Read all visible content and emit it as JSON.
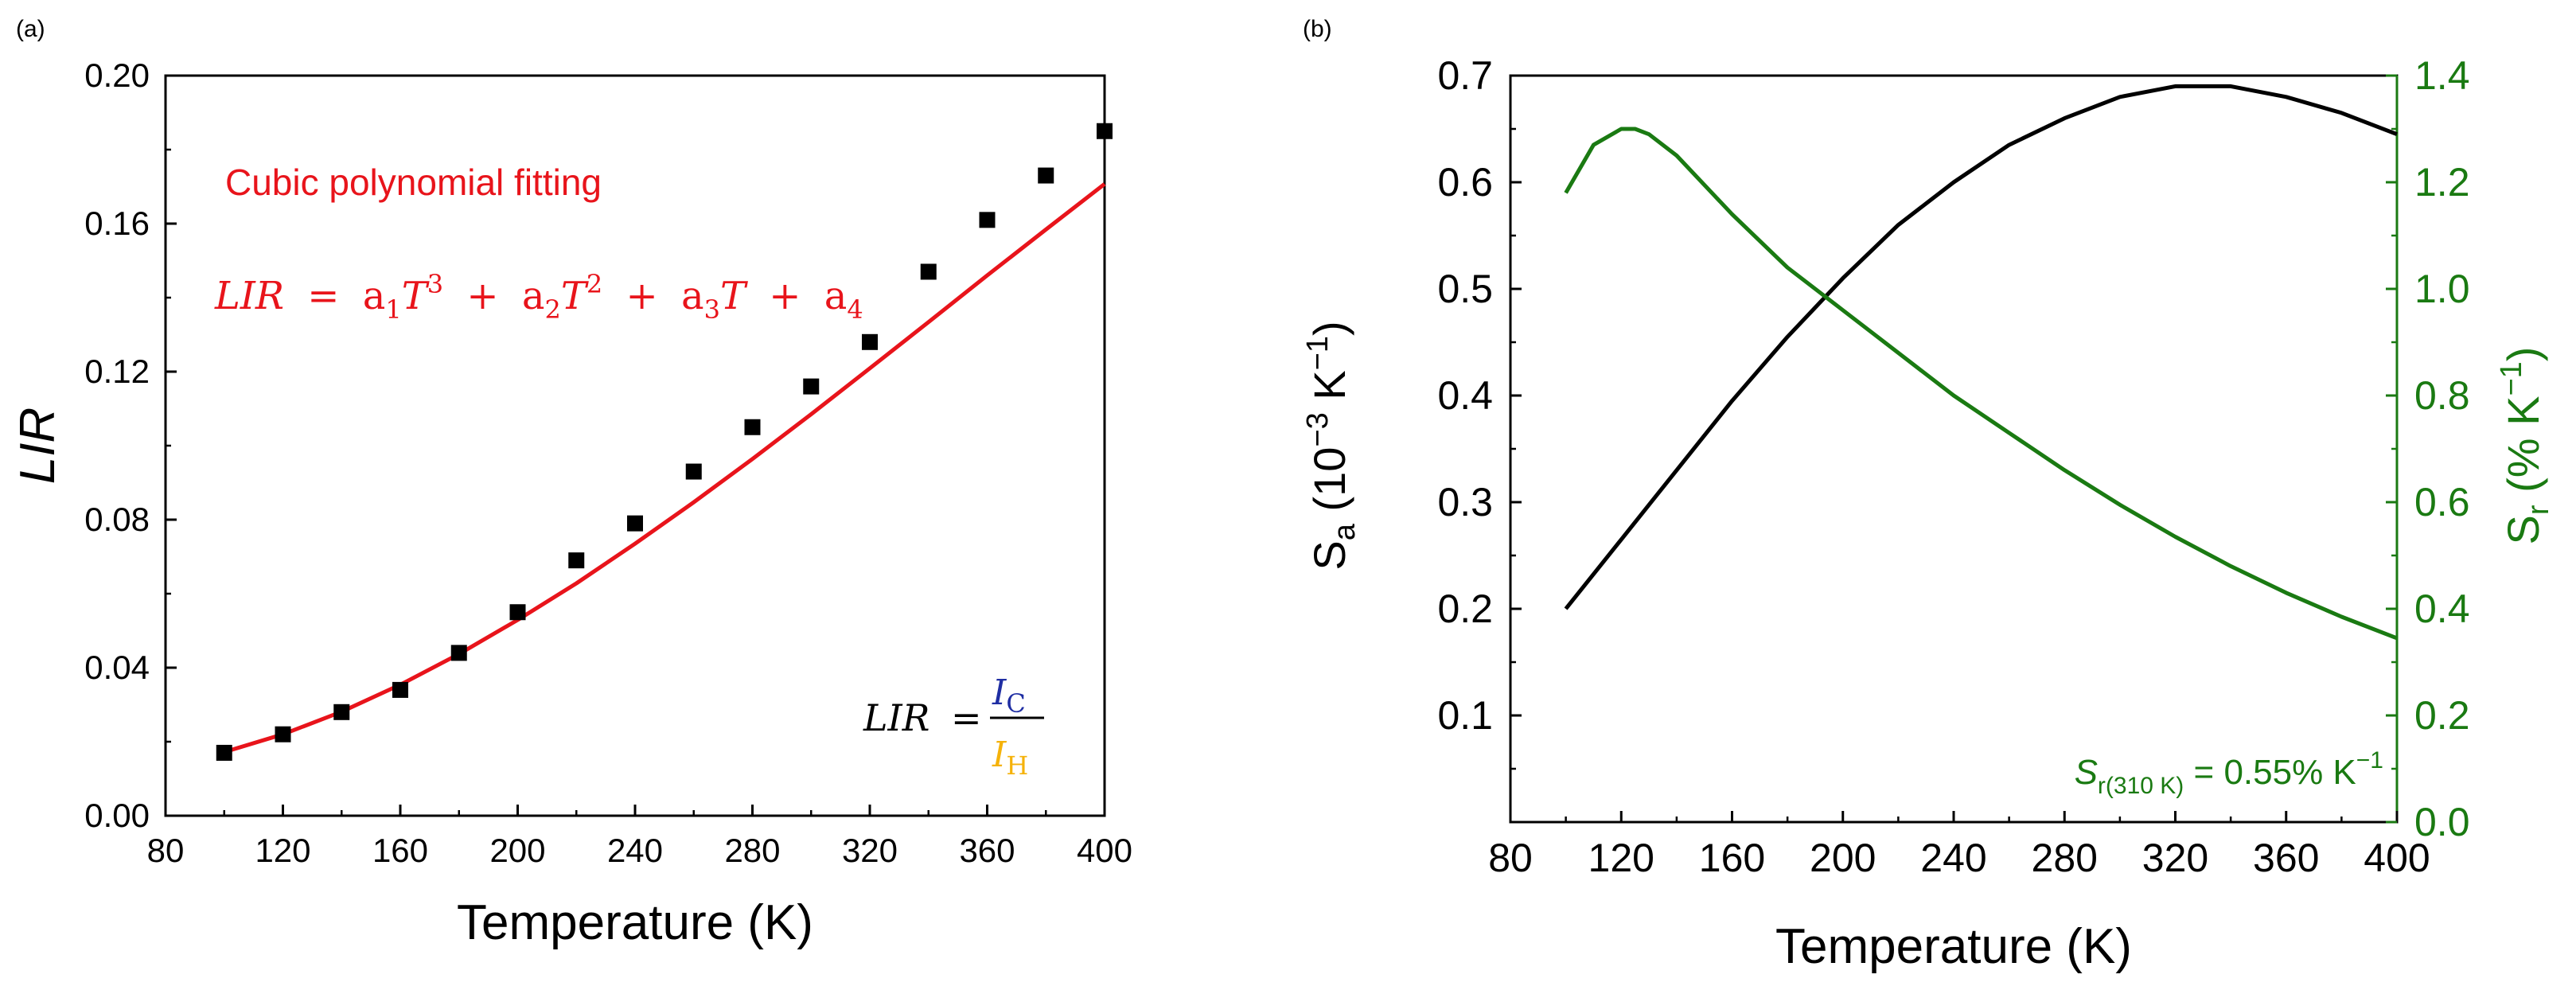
{
  "panels": {
    "a": {
      "label": "(a)"
    },
    "b": {
      "label": "(b)"
    }
  },
  "chart_data": [
    {
      "panel": "a",
      "type": "scatter",
      "xlabel": "Temperature (K)",
      "ylabel": "LIR",
      "xlim": [
        80,
        400
      ],
      "ylim": [
        0.0,
        0.2
      ],
      "xticks": [
        "80",
        "120",
        "160",
        "200",
        "240",
        "280",
        "320",
        "360",
        "400"
      ],
      "yticks": [
        "0.00",
        "0.04",
        "0.08",
        "0.12",
        "0.16",
        "0.20"
      ],
      "colors": {
        "points": "#000000",
        "fit": "#e8141b",
        "annotation": "#e8141b",
        "ic": "#1f2ea3",
        "ih": "#f5b20a"
      },
      "series": [
        {
          "kind": "points",
          "x": [
            100,
            120,
            140,
            160,
            180,
            200,
            220,
            240,
            260,
            280,
            300,
            320,
            340,
            360,
            380,
            400
          ],
          "values": [
            0.017,
            0.022,
            0.028,
            0.034,
            0.044,
            0.055,
            0.069,
            0.079,
            0.093,
            0.105,
            0.116,
            0.128,
            0.147,
            0.161,
            0.173,
            0.185
          ]
        },
        {
          "kind": "fit-line",
          "x": [
            100,
            120,
            140,
            160,
            180,
            200,
            220,
            240,
            260,
            280,
            300,
            320,
            340,
            360,
            380,
            400
          ],
          "values": [
            0.0172,
            0.022,
            0.0281,
            0.0354,
            0.0437,
            0.0529,
            0.0628,
            0.0735,
            0.0847,
            0.0964,
            0.1085,
            0.1209,
            0.1334,
            0.146,
            0.1584,
            0.1707
          ]
        }
      ],
      "annotations": {
        "fit_title": "Cubic polynomial fitting",
        "equation": {
          "lhs": "LIR",
          "eq": "=",
          "t1_a": "a",
          "t1_sub": "1",
          "t1_var": "T",
          "t1_sup": "3",
          "plus1": "+",
          "t2_a": "a",
          "t2_sub": "2",
          "t2_var": "T",
          "t2_sup": "2",
          "plus2": "+",
          "t3_a": "a",
          "t3_sub": "3",
          "t3_var": "T",
          "plus3": "+",
          "t4_a": "a",
          "t4_sub": "4"
        },
        "ratio": {
          "lhs": "LIR",
          "eq": "=",
          "num": "I",
          "num_sub": "C",
          "den": "I",
          "den_sub": "H"
        }
      }
    },
    {
      "panel": "b",
      "type": "line",
      "xlabel": "Temperature (K)",
      "ylabel_left": {
        "main": "S",
        "sub": "a",
        "rest1": " (10",
        "sup1": "−3",
        "rest2": " K",
        "sup2": "−1",
        "rest3": ")"
      },
      "ylabel_right": {
        "main": "S",
        "sub": "r",
        "rest1": " (% K",
        "sup1": "−1",
        "rest2": ")"
      },
      "xlim": [
        80,
        400
      ],
      "ylim_left": [
        0.05,
        0.7
      ],
      "ylim_right": [
        0.0,
        1.4
      ],
      "xticks": [
        "80",
        "120",
        "160",
        "200",
        "240",
        "280",
        "320",
        "360",
        "400"
      ],
      "yticks_left": [
        "0.1",
        "0.2",
        "0.3",
        "0.4",
        "0.5",
        "0.6",
        "0.7"
      ],
      "yticks_right": [
        "0.0",
        "0.2",
        "0.4",
        "0.6",
        "0.8",
        "1.0",
        "1.2",
        "1.4"
      ],
      "colors": {
        "sa": "#000000",
        "sr": "#1a7a12"
      },
      "series": [
        {
          "axis": "left",
          "x": [
            100,
            120,
            140,
            160,
            180,
            200,
            220,
            240,
            260,
            280,
            300,
            320,
            340,
            360,
            380,
            400
          ],
          "values": [
            0.2,
            0.265,
            0.33,
            0.395,
            0.455,
            0.51,
            0.56,
            0.6,
            0.635,
            0.66,
            0.68,
            0.69,
            0.69,
            0.68,
            0.665,
            0.645
          ]
        },
        {
          "axis": "right",
          "x": [
            100,
            110,
            120,
            125,
            130,
            140,
            160,
            180,
            200,
            220,
            240,
            260,
            280,
            300,
            320,
            340,
            360,
            380,
            400
          ],
          "values": [
            1.18,
            1.27,
            1.3,
            1.3,
            1.29,
            1.25,
            1.14,
            1.04,
            0.96,
            0.88,
            0.8,
            0.73,
            0.66,
            0.595,
            0.535,
            0.48,
            0.43,
            0.385,
            0.345
          ]
        }
      ],
      "annotation": {
        "s": "S",
        "sub": "r(310 K)",
        "rest": " = 0.55% K",
        "sup": "−1"
      }
    }
  ]
}
